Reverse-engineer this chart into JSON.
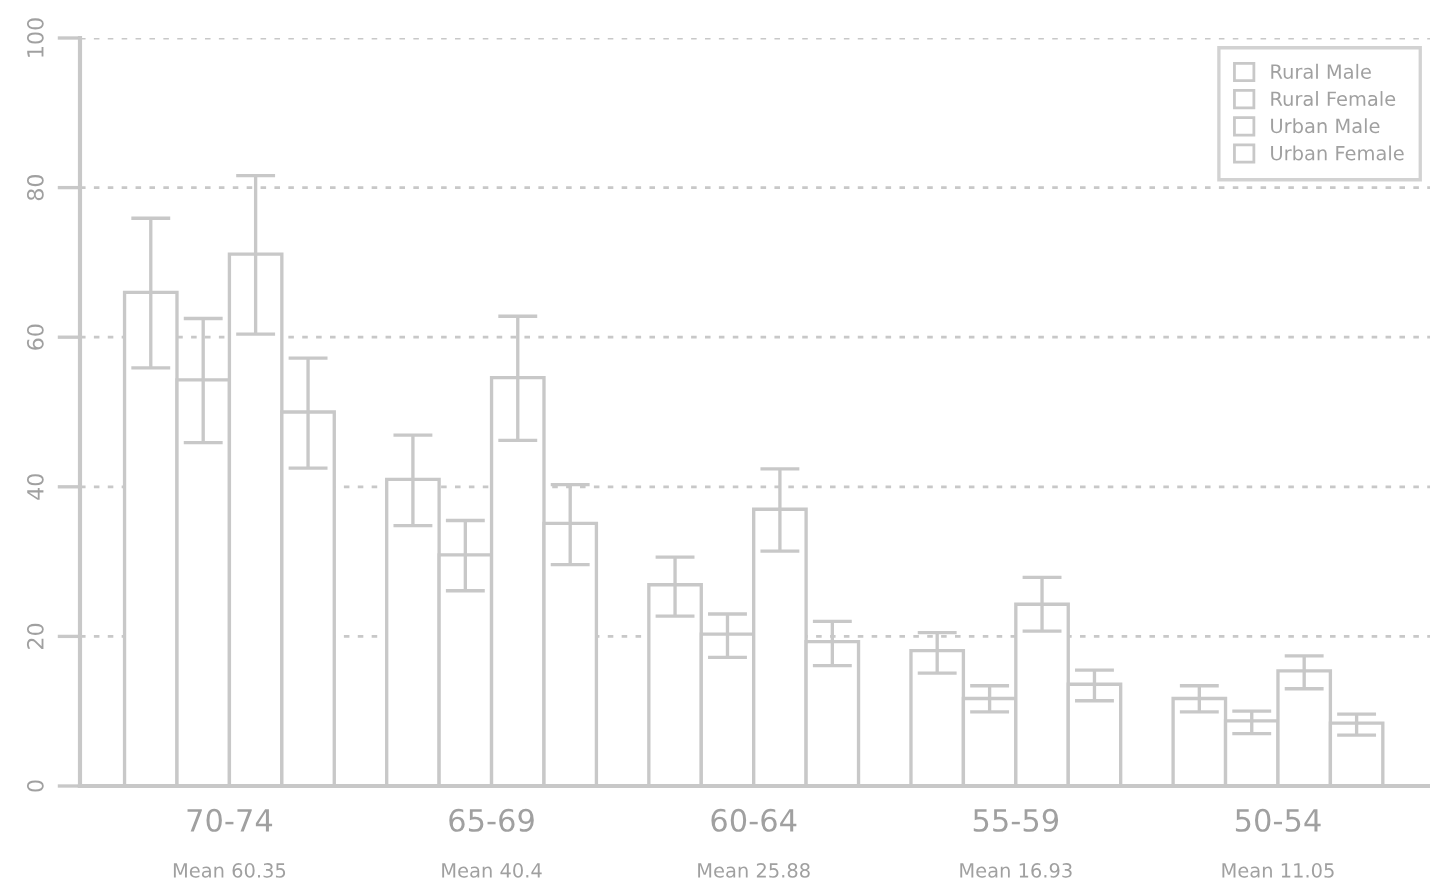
{
  "chart_data": {
    "type": "bar",
    "categories": [
      "70-74",
      "65-69",
      "60-64",
      "55-59",
      "50-54"
    ],
    "series": [
      {
        "name": "Rural Male",
        "color": "#ffffff",
        "values": [
          66.0,
          41.0,
          26.9,
          18.1,
          11.7
        ],
        "errors": [
          [
            55.9,
            75.9
          ],
          [
            34.8,
            46.9
          ],
          [
            22.7,
            30.6
          ],
          [
            15.1,
            20.5
          ],
          [
            9.9,
            13.4
          ]
        ]
      },
      {
        "name": "Rural Female",
        "color": "#ffffff",
        "values": [
          54.3,
          30.9,
          20.3,
          11.7,
          8.7
        ],
        "errors": [
          [
            45.9,
            62.5
          ],
          [
            26.1,
            35.5
          ],
          [
            17.2,
            23.0
          ],
          [
            9.9,
            13.4
          ],
          [
            7.0,
            10.0
          ]
        ]
      },
      {
        "name": "Urban Male",
        "color": "#ffffff",
        "values": [
          71.1,
          54.6,
          37.0,
          24.3,
          15.4
        ],
        "errors": [
          [
            60.4,
            81.6
          ],
          [
            46.2,
            62.8
          ],
          [
            31.4,
            42.4
          ],
          [
            20.7,
            27.9
          ],
          [
            13.0,
            17.4
          ]
        ]
      },
      {
        "name": "Urban Female",
        "color": "#ffffff",
        "values": [
          50.0,
          35.1,
          19.3,
          13.6,
          8.4
        ],
        "errors": [
          [
            42.5,
            57.2
          ],
          [
            29.6,
            40.3
          ],
          [
            16.1,
            22.0
          ],
          [
            11.4,
            15.5
          ],
          [
            6.8,
            9.6
          ]
        ]
      }
    ],
    "annotations": [
      "Mean 60.35",
      "Mean 40.4",
      "Mean 25.88",
      "Mean 16.93",
      "Mean 11.05"
    ],
    "ylim": [
      0,
      100
    ],
    "yticks": [
      0,
      20,
      40,
      60,
      80,
      100
    ],
    "grid": "y",
    "legend": "top right"
  }
}
